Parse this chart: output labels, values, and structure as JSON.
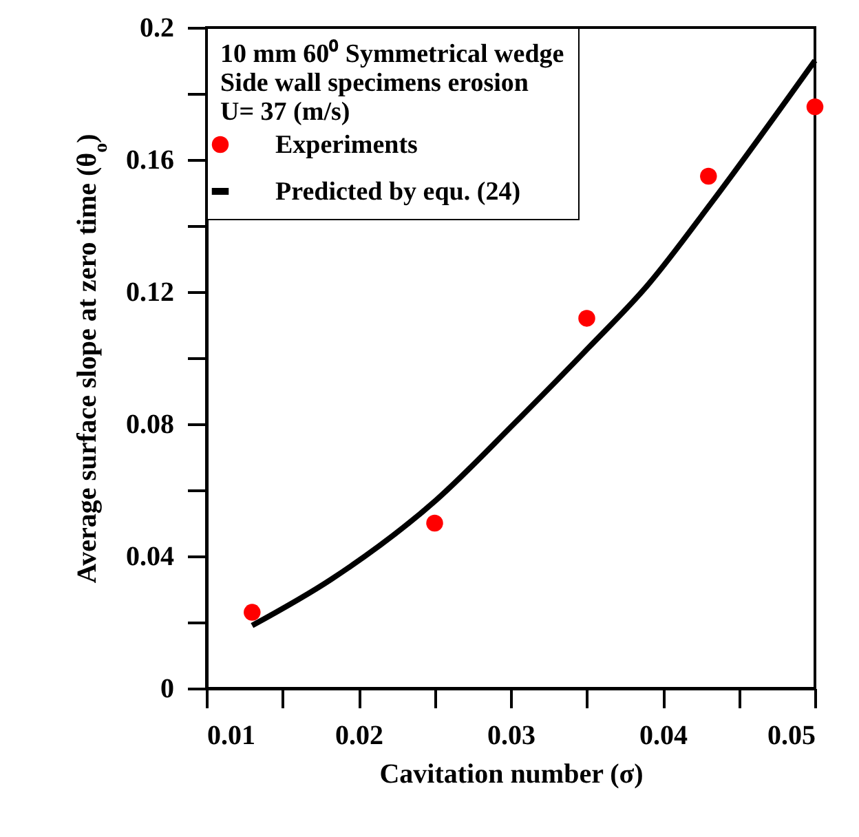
{
  "chart_data": {
    "type": "scatter",
    "xlabel": "Cavitation number (σ)",
    "ylabel": "Average surface slope at zero time (θ$_{o}$)",
    "legend_title": "10 mm 60⁰ Symmetrical wedge\nSide wall specimens erosion\n  U= 37 (m/s)",
    "legend": "top left",
    "xlim": [
      0.01,
      0.05
    ],
    "ylim": [
      0,
      0.2
    ],
    "xticks": [
      0.01,
      {
        "value": 0.015,
        "label": null
      },
      0.02,
      {
        "value": 0.025,
        "label": null
      },
      0.03,
      {
        "value": 0.035,
        "label": null
      },
      0.04,
      {
        "value": 0.045,
        "label": null
      },
      0.05
    ],
    "yticks": [
      0,
      {
        "value": 0.02,
        "label": null
      },
      0.04,
      {
        "value": 0.06,
        "label": null
      },
      0.08,
      {
        "value": 0.1,
        "label": null
      },
      0.12,
      {
        "value": 0.14,
        "label": null
      },
      0.16,
      {
        "value": 0.18,
        "label": null
      },
      0.2
    ],
    "x": [
      0.013,
      0.025,
      0.035,
      0.043,
      0.05
    ],
    "series": [
      {
        "name": "Experiments",
        "marker": "circle",
        "color": "#ff0000",
        "values": [
          0.023,
          0.05,
          0.112,
          0.155,
          0.176
        ]
      },
      {
        "name": "Predicted by equ. (24)",
        "type": "line",
        "line_style": "solid",
        "color": "#000000",
        "x": [
          0.013,
          0.0182,
          0.0251,
          0.0302,
          0.0351,
          0.039,
          0.0432,
          0.05
        ],
        "values": [
          0.019,
          0.033,
          0.057,
          0.08,
          0.103,
          0.122,
          0.147,
          0.19
        ]
      }
    ]
  }
}
